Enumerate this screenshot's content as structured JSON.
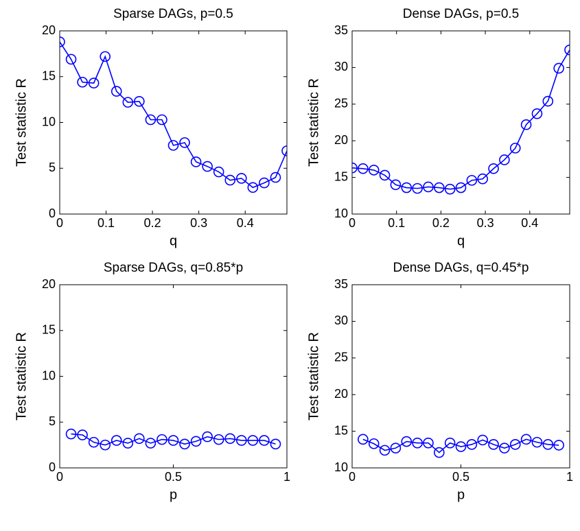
{
  "chart_data": [
    {
      "type": "line",
      "title": "Sparse DAGs, p=0.5",
      "xlabel": "q",
      "ylabel": "Test statistic R",
      "color": "#0000ff",
      "marker": "circle",
      "x": [
        0,
        0.0245,
        0.049,
        0.0735,
        0.098,
        0.1225,
        0.147,
        0.1715,
        0.196,
        0.2205,
        0.245,
        0.2695,
        0.294,
        0.3185,
        0.343,
        0.3675,
        0.392,
        0.4165,
        0.441,
        0.4655,
        0.49
      ],
      "values": [
        18.8,
        16.9,
        14.4,
        14.3,
        17.2,
        13.4,
        12.2,
        12.3,
        10.3,
        10.3,
        7.5,
        7.8,
        5.7,
        5.2,
        4.6,
        3.7,
        3.9,
        2.9,
        3.4,
        4.0,
        6.9
      ],
      "xlim": [
        0,
        0.49
      ],
      "xticks": [
        0,
        0.1,
        0.2,
        0.3,
        0.4
      ],
      "ylim": [
        0,
        20
      ],
      "yticks": [
        0,
        5,
        10,
        15,
        20
      ]
    },
    {
      "type": "line",
      "title": "Dense DAGs, p=0.5",
      "xlabel": "q",
      "ylabel": "Test statistic R",
      "color": "#0000ff",
      "marker": "circle",
      "x": [
        0,
        0.0245,
        0.049,
        0.0735,
        0.098,
        0.1225,
        0.147,
        0.1715,
        0.196,
        0.2205,
        0.245,
        0.2695,
        0.294,
        0.3185,
        0.343,
        0.3675,
        0.392,
        0.4165,
        0.441,
        0.4655,
        0.49
      ],
      "values": [
        16.3,
        16.2,
        16.0,
        15.3,
        14.0,
        13.6,
        13.5,
        13.7,
        13.6,
        13.4,
        13.6,
        14.6,
        14.8,
        16.2,
        17.4,
        19.0,
        22.2,
        23.7,
        25.4,
        29.9,
        32.4
      ],
      "xlim": [
        0,
        0.49
      ],
      "xticks": [
        0,
        0.1,
        0.2,
        0.3,
        0.4
      ],
      "ylim": [
        10,
        35
      ],
      "yticks": [
        10,
        15,
        20,
        25,
        30,
        35
      ]
    },
    {
      "type": "line",
      "title": "Sparse DAGs, q=0.85*p",
      "xlabel": "p",
      "ylabel": "Test statistic R",
      "color": "#0000ff",
      "marker": "circle",
      "x": [
        0.05,
        0.1,
        0.15,
        0.2,
        0.25,
        0.3,
        0.35,
        0.4,
        0.45,
        0.5,
        0.55,
        0.6,
        0.65,
        0.7,
        0.75,
        0.8,
        0.85,
        0.9,
        0.95
      ],
      "values": [
        3.7,
        3.6,
        2.8,
        2.5,
        3.0,
        2.7,
        3.2,
        2.7,
        3.1,
        3.0,
        2.6,
        2.9,
        3.4,
        3.1,
        3.2,
        3.0,
        3.0,
        3.0,
        2.6
      ],
      "xlim": [
        0,
        1
      ],
      "xticks": [
        0,
        0.5,
        1
      ],
      "ylim": [
        0,
        20
      ],
      "yticks": [
        0,
        5,
        10,
        15,
        20
      ]
    },
    {
      "type": "line",
      "title": "Dense DAGs, q=0.45*p",
      "xlabel": "p",
      "ylabel": "Test statistic R",
      "color": "#0000ff",
      "marker": "circle",
      "x": [
        0.05,
        0.1,
        0.15,
        0.2,
        0.25,
        0.3,
        0.35,
        0.4,
        0.45,
        0.5,
        0.55,
        0.6,
        0.65,
        0.7,
        0.75,
        0.8,
        0.85,
        0.9,
        0.95
      ],
      "values": [
        13.9,
        13.3,
        12.4,
        12.7,
        13.6,
        13.4,
        13.4,
        12.1,
        13.4,
        12.9,
        13.2,
        13.8,
        13.2,
        12.7,
        13.2,
        13.9,
        13.5,
        13.2,
        13.1
      ],
      "xlim": [
        0,
        1
      ],
      "xticks": [
        0,
        0.5,
        1
      ],
      "ylim": [
        10,
        35
      ],
      "yticks": [
        10,
        15,
        20,
        25,
        30,
        35
      ]
    }
  ]
}
